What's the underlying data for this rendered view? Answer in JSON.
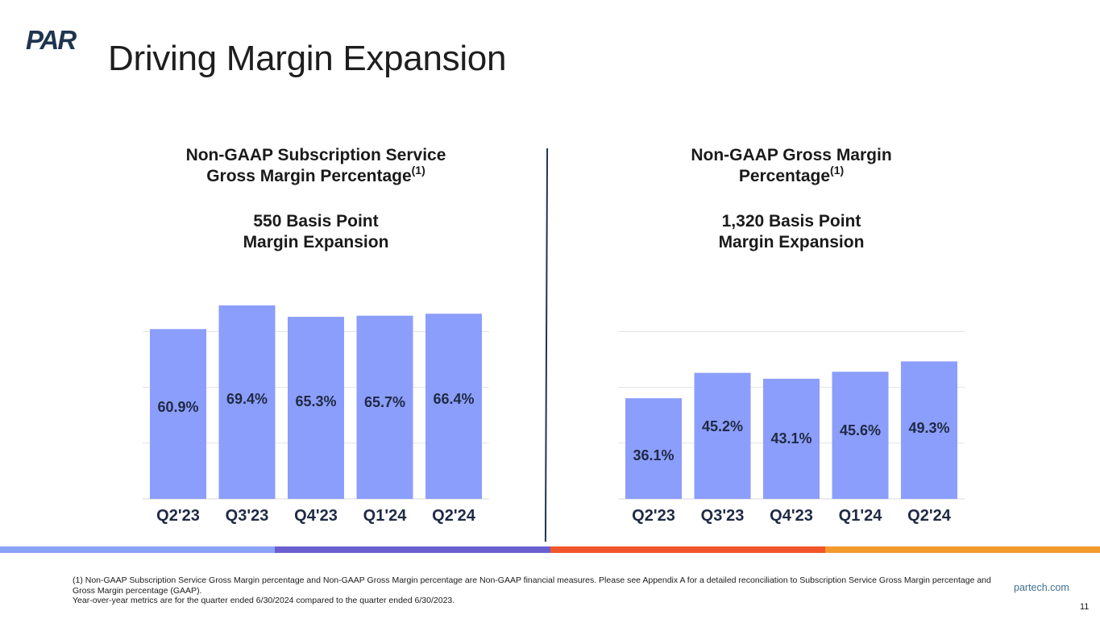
{
  "brand": {
    "logo_text": "PAR",
    "logo_color": "#1f3550"
  },
  "page": {
    "title": "Driving Margin Expansion",
    "website": "partech.com",
    "page_number": "11"
  },
  "footnote": {
    "line1": "(1) Non-GAAP Subscription Service Gross Margin percentage and Non-GAAP Gross Margin percentage are Non-GAAP financial measures. Please see Appendix A for a detailed reconciliation to Subscription Service Gross Margin percentage and Gross Margin percentage (GAAP).",
    "line2": "Year-over-year metrics are for the quarter ended 6/30/2024 compared to the quarter ended 6/30/2023."
  },
  "band_colors": [
    "#8aa2f8",
    "#6a5fd0",
    "#f0562a",
    "#f29a2e"
  ],
  "chart_data": [
    {
      "type": "bar",
      "title_line1": "Non-GAAP Subscription Service",
      "title_line2": "Gross Margin Percentage",
      "title_footnote": "(1)",
      "subtitle_line1": "550 Basis Point",
      "subtitle_line2": "Margin Expansion",
      "categories": [
        "Q2'23",
        "Q3'23",
        "Q4'23",
        "Q1'24",
        "Q2'24"
      ],
      "values": [
        60.9,
        69.4,
        65.3,
        65.7,
        66.4
      ],
      "labels": [
        "60.9%",
        "69.4%",
        "65.3%",
        "65.7%",
        "66.4%"
      ],
      "ylim": [
        0,
        60
      ],
      "gridlines": [
        0,
        20,
        40,
        60
      ],
      "bar_color": "#8c9efb",
      "grid": true
    },
    {
      "type": "bar",
      "title_line1": "Non-GAAP Gross Margin",
      "title_line2": "Percentage",
      "title_footnote": "(1)",
      "subtitle_line1": "1,320 Basis Point",
      "subtitle_line2": "Margin Expansion",
      "categories": [
        "Q2'23",
        "Q3'23",
        "Q4'23",
        "Q1'24",
        "Q2'24"
      ],
      "values": [
        36.1,
        45.2,
        43.1,
        45.6,
        49.3
      ],
      "labels": [
        "36.1%",
        "45.2%",
        "43.1%",
        "45.6%",
        "49.3%"
      ],
      "ylim": [
        0,
        60
      ],
      "gridlines": [
        0,
        20,
        40,
        60
      ],
      "bar_color": "#8c9efb",
      "grid": true
    }
  ]
}
